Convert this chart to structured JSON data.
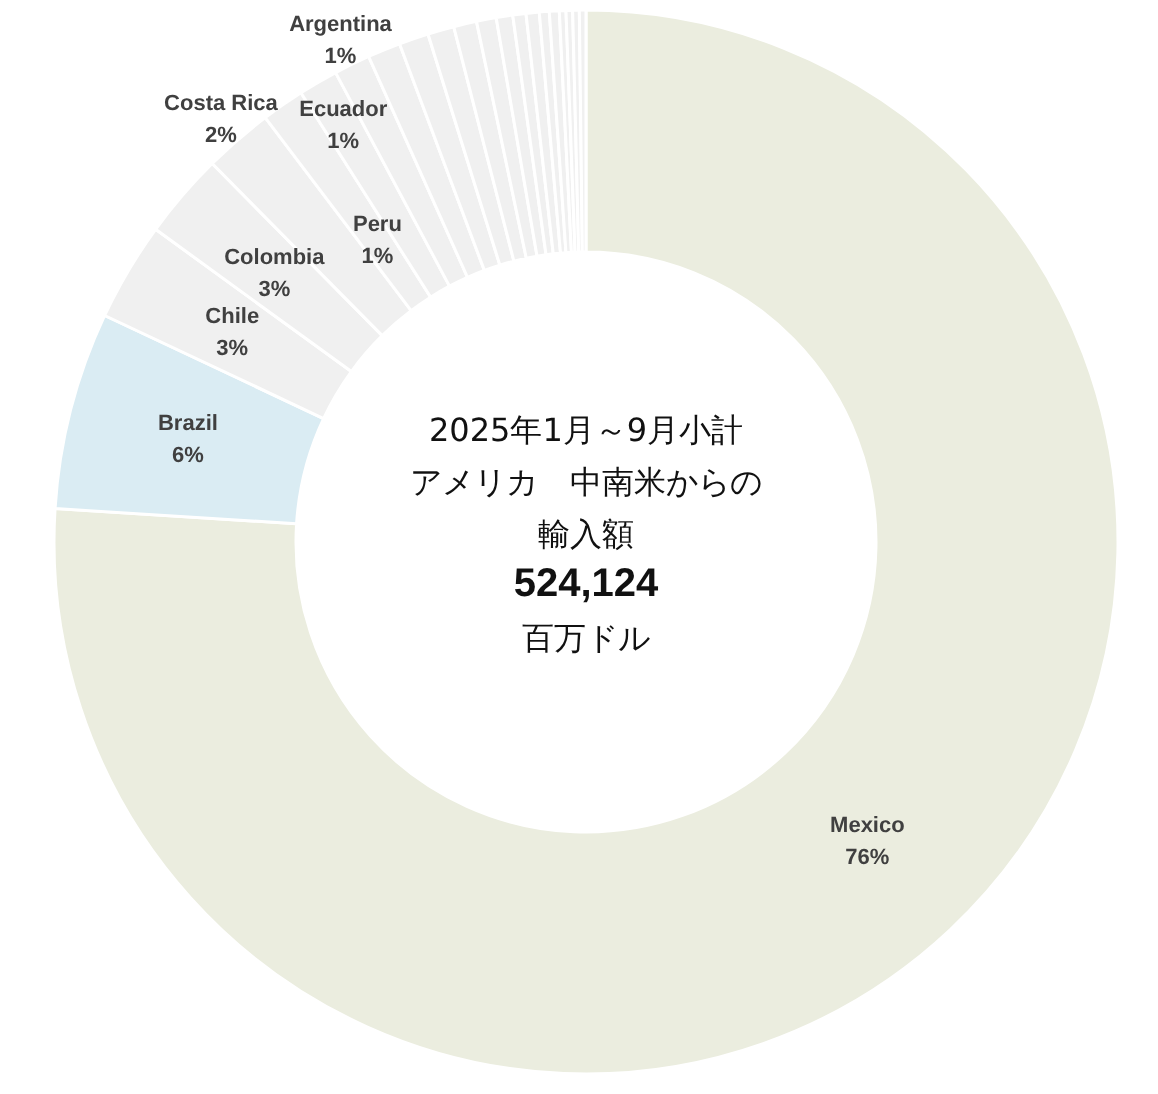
{
  "chart_data": {
    "type": "donut",
    "title": "2025年1月～9月小計",
    "subtitle": "アメリカ　中南米からの輸入額",
    "annotations": [
      "524,124",
      "百万ドル"
    ],
    "categories": [
      "Mexico",
      "Brazil",
      "Chile",
      "Colombia",
      "Costa Rica",
      "Peru",
      "Ecuador",
      "Argentina",
      null,
      null,
      null,
      null,
      null,
      null,
      null,
      null,
      null,
      null,
      null,
      null,
      null,
      null
    ],
    "values": [
      76.0,
      6.0,
      3.0,
      2.6,
      2.1,
      1.3,
      1.2,
      1.1,
      1.0,
      0.9,
      0.8,
      0.7,
      0.6,
      0.5,
      0.4,
      0.4,
      0.3,
      0.3,
      0.2,
      0.2,
      0.2,
      0.2
    ],
    "value_labels": [
      "76%",
      "6%",
      "3%",
      "3%",
      "2%",
      "1%",
      "1%",
      "1%",
      null,
      null,
      null,
      null,
      null,
      null,
      null,
      null,
      null,
      null,
      null,
      null,
      null,
      null
    ],
    "colors": [
      "#ebeddf",
      "#daecf3",
      "#f0f0f0",
      "#f0f0f0",
      "#f0f0f0",
      "#f0f0f0",
      "#f0f0f0",
      "#f0f0f0",
      "#f0f0f0",
      "#f0f0f0",
      "#f0f0f0",
      "#f0f0f0",
      "#f0f0f0",
      "#f0f0f0",
      "#f0f0f0",
      "#f0f0f0",
      "#f0f0f0",
      "#f0f0f0",
      "#f0f0f0",
      "#f0f0f0",
      "#f0f0f0",
      "#f0f0f0"
    ]
  }
}
